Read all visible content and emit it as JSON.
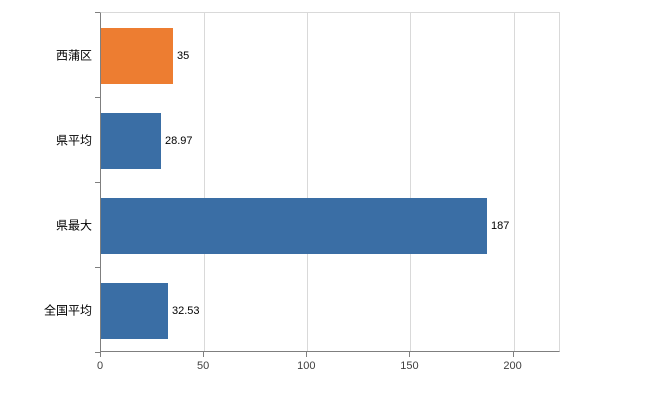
{
  "chart_data": {
    "type": "bar",
    "orientation": "horizontal",
    "title": "",
    "xlabel": "",
    "ylabel": "",
    "categories": [
      "西蒲区",
      "県平均",
      "県最大",
      "全国平均"
    ],
    "values": [
      35,
      28.97,
      187,
      32.53
    ],
    "value_labels": [
      "35",
      "28.97",
      "187",
      "32.53"
    ],
    "bar_colors": [
      "#ED7D31",
      "#3A6EA5",
      "#3A6EA5",
      "#3A6EA5"
    ],
    "x_ticks": [
      0,
      50,
      100,
      150,
      200
    ],
    "x_tick_labels": [
      "0",
      "50",
      "100",
      "150",
      "200"
    ],
    "xlim": [
      0,
      223
    ],
    "grid": true,
    "legend_position": "none",
    "colors": {
      "background": "#ffffff",
      "gridline": "#d9d9d9",
      "axis_line": "#7f7f7f",
      "tick_label": "#404040",
      "bar_border": "#244061"
    }
  }
}
